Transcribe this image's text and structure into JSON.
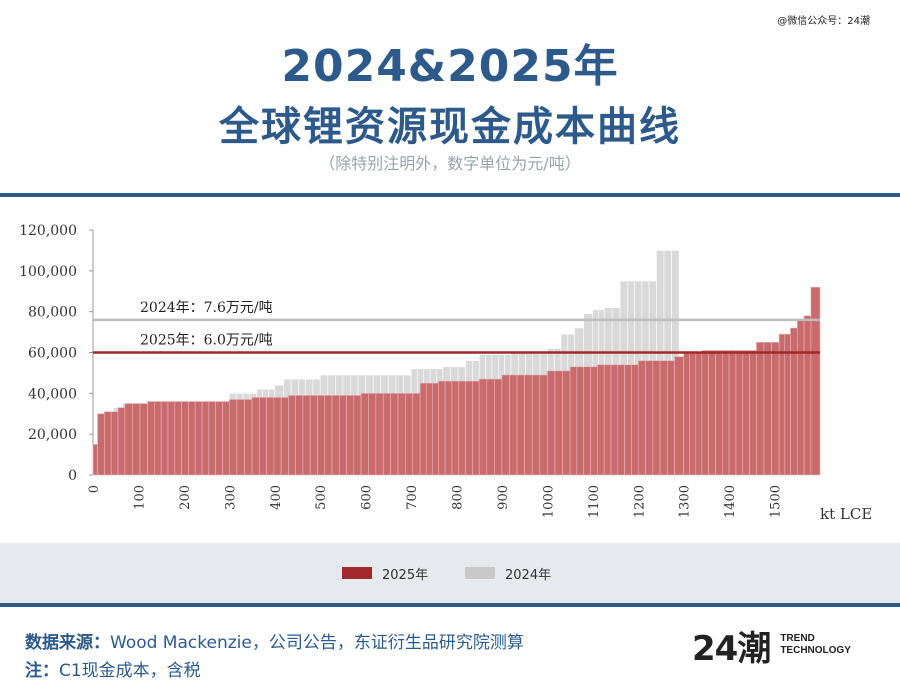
{
  "watermark": "@微信公众号：24潮",
  "title_line1": "2024&2025年",
  "title_line2": "全球锂资源现金成本曲线",
  "subtitle": "（除特别注明外，数字单位为元/吨）",
  "colors": {
    "accent": "#2d5a8a",
    "series_2025": "#b23a3f",
    "series_2024": "#cfcfcf"
  },
  "legend": [
    {
      "label": "2025年",
      "color": "#a3282c"
    },
    {
      "label": "2024年",
      "color": "#c9c9c9"
    }
  ],
  "footer": {
    "source_label": "数据来源：",
    "source_text": "Wood Mackenzie，公司公告，东证衍生品研究院测算",
    "note_label": "注：",
    "note_text": "C1现金成本，含税"
  },
  "logo": {
    "mark": "24潮",
    "line1": "TREND",
    "line2": "TECHNOLOGY"
  },
  "chart_data": {
    "type": "bar",
    "xlabel": "kt LCE",
    "xlim": [
      0,
      1600
    ],
    "ylim": [
      0,
      120000
    ],
    "y_ticks": [
      0,
      20000,
      40000,
      60000,
      80000,
      100000,
      120000
    ],
    "y_tick_labels": [
      "0",
      "20,000",
      "40,000",
      "60,000",
      "80,000",
      "100,000",
      "120,000"
    ],
    "x_ticks": [
      0,
      100,
      200,
      300,
      400,
      500,
      600,
      700,
      800,
      900,
      1000,
      1100,
      1200,
      1300,
      1400,
      1500
    ],
    "grid": false,
    "annotations": [
      {
        "label": "2024年：7.6万元/吨",
        "y": 76000,
        "series": "2024年"
      },
      {
        "label": "2025年：6.0万元/吨",
        "y": 60000,
        "series": "2025年"
      }
    ],
    "series": [
      {
        "name": "2024年",
        "steps": [
          [
            0,
            15,
            15000
          ],
          [
            15,
            25,
            30000
          ],
          [
            25,
            45,
            31000
          ],
          [
            45,
            65,
            33000
          ],
          [
            65,
            150,
            35000
          ],
          [
            150,
            300,
            36000
          ],
          [
            300,
            360,
            40000
          ],
          [
            360,
            400,
            42000
          ],
          [
            400,
            420,
            44000
          ],
          [
            420,
            500,
            47000
          ],
          [
            500,
            600,
            49000
          ],
          [
            600,
            700,
            49000
          ],
          [
            700,
            770,
            52000
          ],
          [
            770,
            820,
            53000
          ],
          [
            820,
            850,
            56000
          ],
          [
            850,
            920,
            59000
          ],
          [
            920,
            1000,
            60000
          ],
          [
            1000,
            1030,
            62000
          ],
          [
            1030,
            1060,
            69000
          ],
          [
            1060,
            1080,
            72000
          ],
          [
            1080,
            1100,
            79000
          ],
          [
            1100,
            1125,
            81000
          ],
          [
            1125,
            1160,
            82000
          ],
          [
            1160,
            1240,
            95000
          ],
          [
            1240,
            1290,
            110000
          ]
        ]
      },
      {
        "name": "2025年",
        "steps": [
          [
            0,
            10,
            15000
          ],
          [
            10,
            25,
            30000
          ],
          [
            25,
            55,
            31000
          ],
          [
            55,
            70,
            33000
          ],
          [
            70,
            120,
            35000
          ],
          [
            120,
            300,
            36000
          ],
          [
            300,
            350,
            37000
          ],
          [
            350,
            430,
            38000
          ],
          [
            430,
            590,
            39000
          ],
          [
            590,
            720,
            40000
          ],
          [
            720,
            760,
            45000
          ],
          [
            760,
            850,
            46000
          ],
          [
            850,
            900,
            47000
          ],
          [
            900,
            1000,
            49000
          ],
          [
            1000,
            1050,
            51000
          ],
          [
            1050,
            1110,
            53000
          ],
          [
            1110,
            1200,
            54000
          ],
          [
            1200,
            1280,
            56000
          ],
          [
            1280,
            1300,
            58000
          ],
          [
            1300,
            1340,
            60000
          ],
          [
            1340,
            1460,
            61000
          ],
          [
            1460,
            1510,
            65000
          ],
          [
            1510,
            1535,
            69000
          ],
          [
            1535,
            1550,
            72000
          ],
          [
            1550,
            1565,
            76000
          ],
          [
            1565,
            1580,
            78000
          ],
          [
            1580,
            1600,
            92000
          ]
        ]
      }
    ]
  }
}
